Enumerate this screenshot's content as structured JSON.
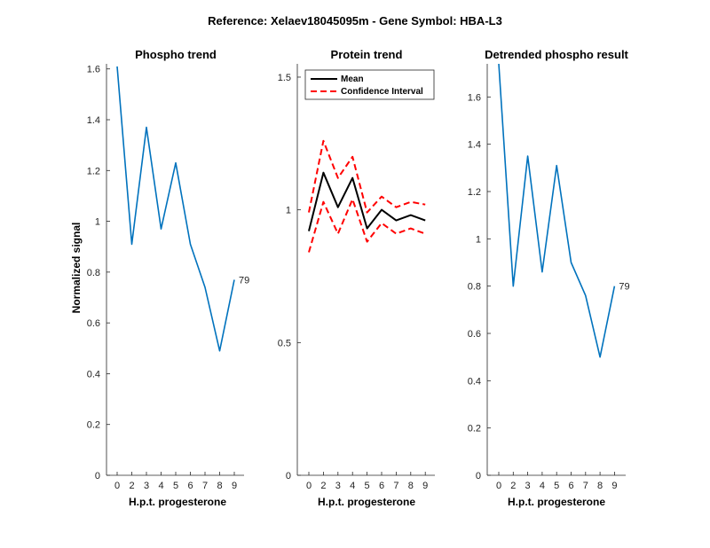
{
  "figure": {
    "title": "Reference:  Xelaev18045095m - Gene Symbol:  HBA-L3"
  },
  "colors": {
    "blue": "#0072BD",
    "black": "#000000",
    "red": "#FF0000"
  },
  "chart_data": [
    {
      "type": "line",
      "title": "Phospho trend",
      "xlabel": "H.p.t. progesterone",
      "ylabel": "Normalized signal",
      "x_ticks": [
        "0",
        "2",
        "3",
        "4",
        "5",
        "6",
        "7",
        "8",
        "9"
      ],
      "ylim": [
        0,
        1.62
      ],
      "y_ticks": [
        "0",
        "0.2",
        "0.4",
        "0.6",
        "0.8",
        "1",
        "1.2",
        "1.4",
        "1.6"
      ],
      "series": [
        {
          "name": "Phospho",
          "values": [
            1.61,
            0.91,
            1.37,
            0.97,
            1.23,
            0.91,
            0.74,
            0.49,
            0.77
          ]
        }
      ],
      "end_label": "79"
    },
    {
      "type": "line",
      "title": "Protein trend",
      "xlabel": "H.p.t. progesterone",
      "ylabel": "",
      "x_ticks": [
        "0",
        "2",
        "3",
        "4",
        "5",
        "6",
        "7",
        "8",
        "9"
      ],
      "ylim": [
        0,
        1.55
      ],
      "y_ticks": [
        "0",
        "0.5",
        "1",
        "1.5"
      ],
      "legend": [
        "Mean",
        "Confidence Interval"
      ],
      "legend_position": "top-right",
      "series": [
        {
          "name": "Mean",
          "values": [
            0.92,
            1.14,
            1.01,
            1.12,
            0.93,
            1.0,
            0.96,
            0.98,
            0.96
          ]
        },
        {
          "name": "CI upper",
          "values": [
            0.99,
            1.26,
            1.12,
            1.2,
            0.99,
            1.05,
            1.01,
            1.03,
            1.02
          ]
        },
        {
          "name": "CI lower",
          "values": [
            0.84,
            1.03,
            0.91,
            1.04,
            0.88,
            0.95,
            0.91,
            0.93,
            0.91
          ]
        }
      ]
    },
    {
      "type": "line",
      "title": "Detrended phospho result",
      "xlabel": "H.p.t. progesterone",
      "ylabel": "",
      "x_ticks": [
        "0",
        "2",
        "3",
        "4",
        "5",
        "6",
        "7",
        "8",
        "9"
      ],
      "ylim": [
        0,
        1.74
      ],
      "y_ticks": [
        "0",
        "0.2",
        "0.4",
        "0.6",
        "0.8",
        "1",
        "1.2",
        "1.4",
        "1.6"
      ],
      "series": [
        {
          "name": "Detrended",
          "values": [
            1.74,
            0.8,
            1.35,
            0.86,
            1.31,
            0.9,
            0.76,
            0.5,
            0.8
          ]
        }
      ],
      "end_label": "79"
    }
  ]
}
